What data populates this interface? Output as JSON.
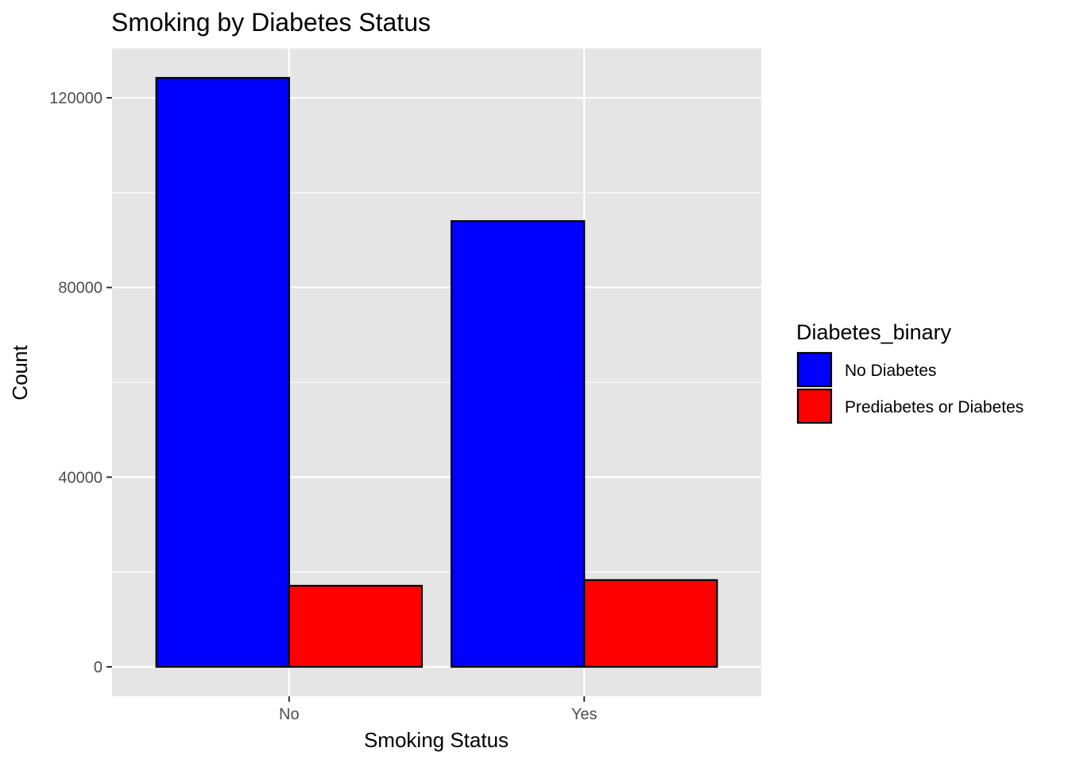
{
  "chart_data": {
    "type": "bar",
    "title": "Smoking by Diabetes Status",
    "xlabel": "Smoking Status",
    "ylabel": "Count",
    "categories": [
      "No",
      "Yes"
    ],
    "series": [
      {
        "name": "No Diabetes",
        "color": "#0000ff",
        "values": [
          124200,
          94000
        ]
      },
      {
        "name": "Prediabetes or Diabetes",
        "color": "#ff0000",
        "values": [
          17100,
          18300
        ]
      }
    ],
    "ylim": [
      -6200,
      130400
    ],
    "yticks": [
      0,
      40000,
      80000,
      120000
    ],
    "ytick_labels": [
      "0",
      "40000",
      "80000",
      "120000"
    ],
    "grid": true,
    "legend": {
      "title": "Diabetes_binary",
      "position": "right"
    },
    "panel_color": "#e5e5e5",
    "grid_color": "#ffffff",
    "bar_outline_color": "#000000"
  }
}
